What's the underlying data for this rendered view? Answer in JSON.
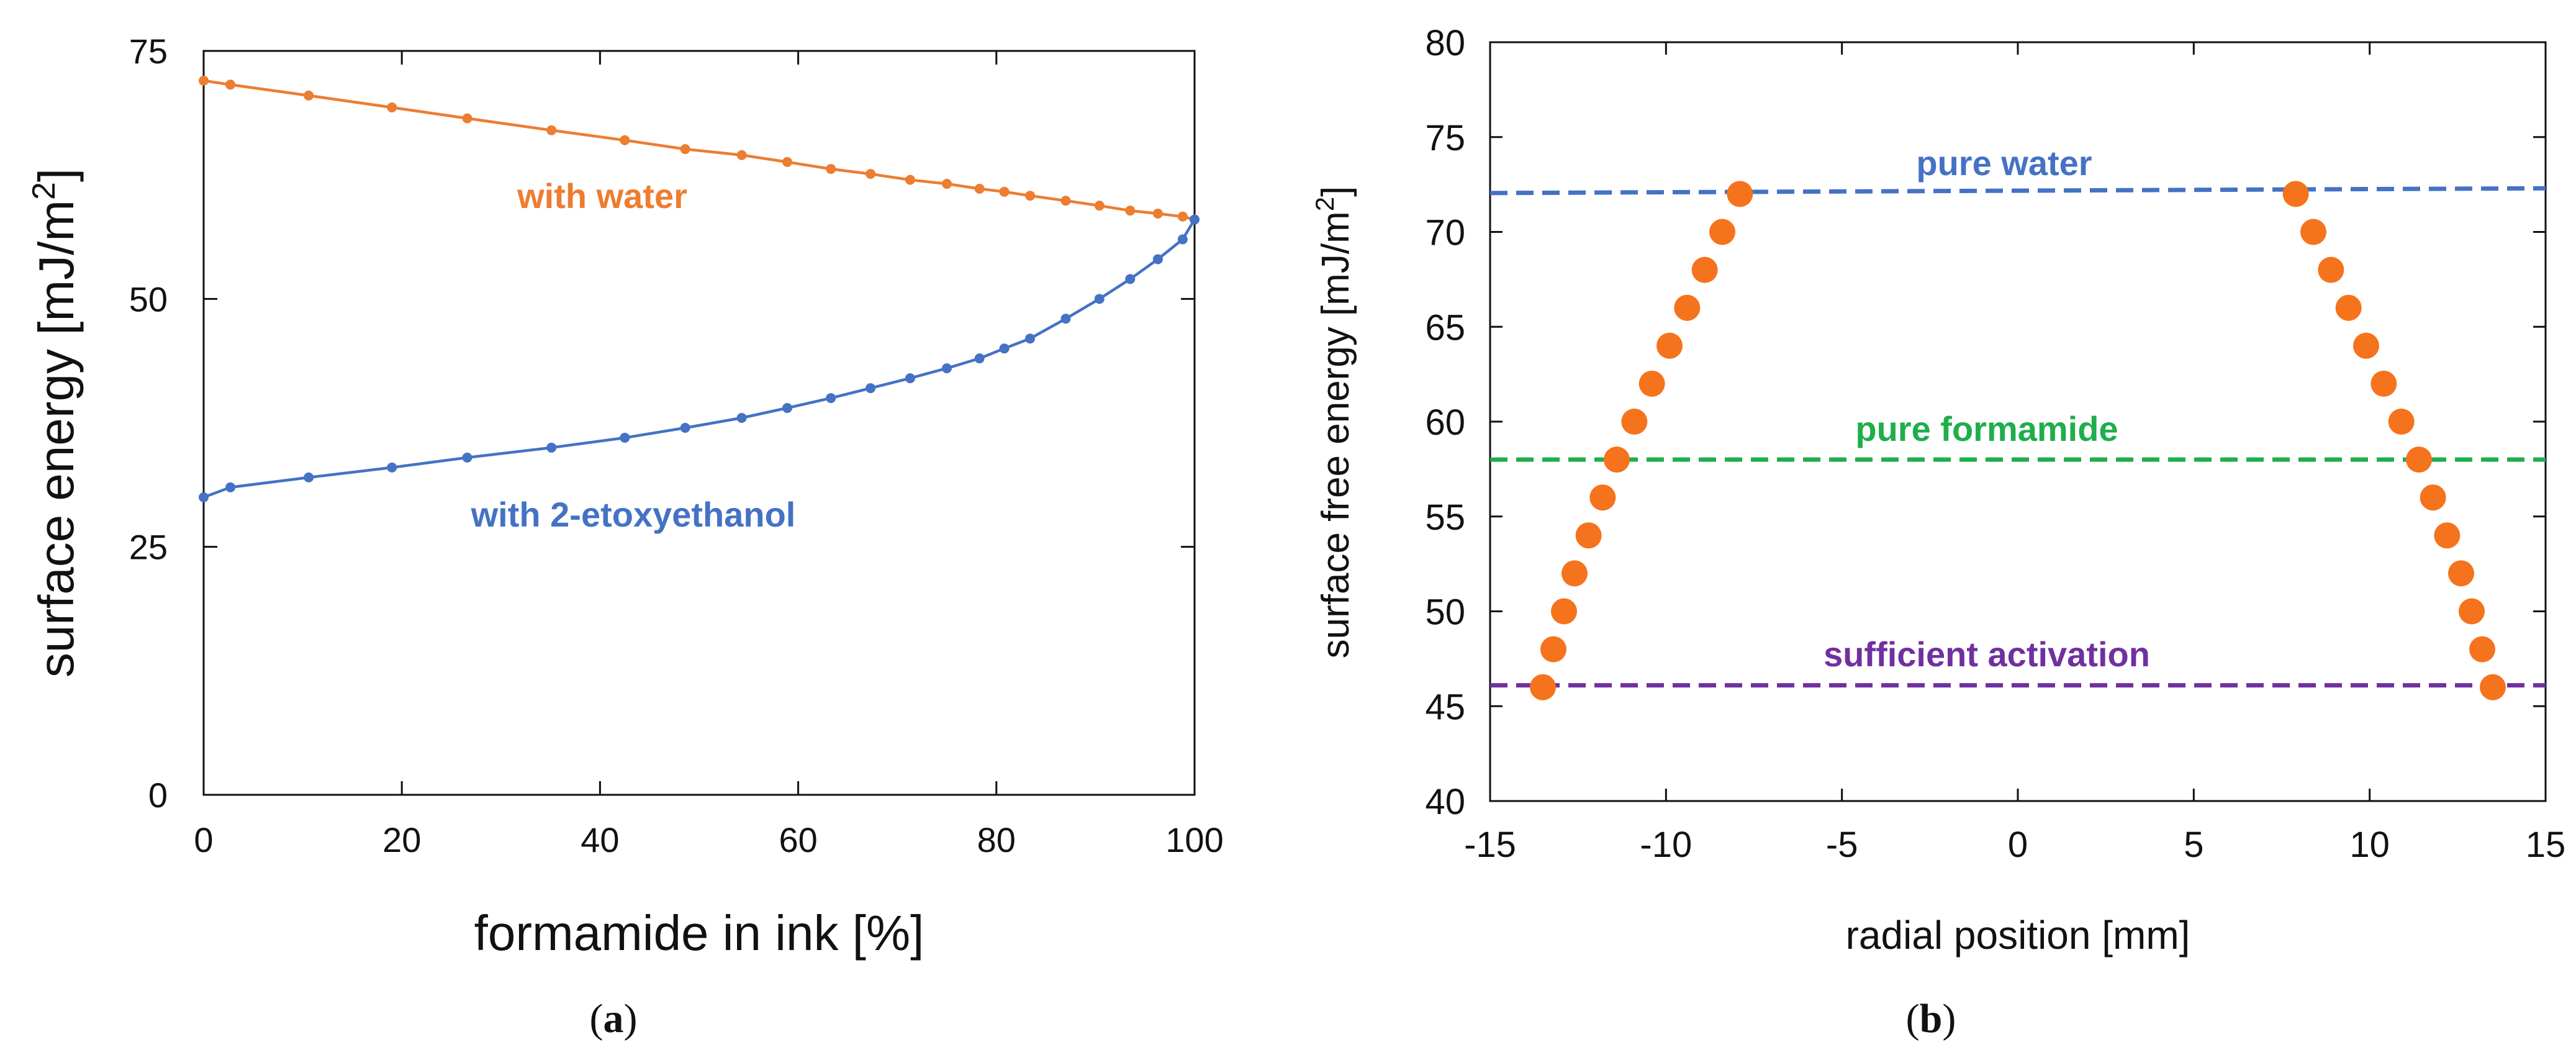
{
  "chart_data": [
    {
      "type": "line",
      "panel": "a",
      "caption": {
        "open": "(",
        "letter": "a",
        "close": ")"
      },
      "xlabel": "formamide in ink [%]",
      "ylabel_main": "surface energy [mJ/m",
      "ylabel_sup": "2",
      "ylabel_end": "]",
      "xlim": [
        0,
        100
      ],
      "ylim": [
        0,
        75
      ],
      "xticks": [
        0,
        20,
        40,
        60,
        80,
        100
      ],
      "yticks": [
        0,
        25,
        50,
        75
      ],
      "grid": false,
      "series": [
        {
          "name": "with water",
          "color": "#ED7D31",
          "label": "with water",
          "x": [
            0,
            2.7,
            10.6,
            19.0,
            26.6,
            35.1,
            42.5,
            48.6,
            54.3,
            58.9,
            63.3,
            67.3,
            71.3,
            75.0,
            78.3,
            80.8,
            83.4,
            87.0,
            90.4,
            93.5,
            96.3,
            98.8,
            100
          ],
          "y": [
            72.0,
            71.6,
            70.5,
            69.3,
            68.2,
            67.0,
            66.0,
            65.1,
            64.5,
            63.8,
            63.1,
            62.6,
            62.0,
            61.6,
            61.1,
            60.8,
            60.4,
            59.9,
            59.4,
            58.9,
            58.6,
            58.3,
            58.0
          ]
        },
        {
          "name": "with 2-etoxyethanol",
          "color": "#4472C4",
          "label": "with 2-etoxyethanol",
          "x": [
            0,
            2.7,
            10.6,
            19.0,
            26.6,
            35.1,
            42.5,
            48.6,
            54.3,
            58.9,
            63.3,
            67.3,
            71.3,
            75.0,
            78.3,
            80.8,
            83.4,
            87.0,
            90.4,
            93.5,
            96.3,
            98.8,
            100
          ],
          "y": [
            30.0,
            31.0,
            32.0,
            33.0,
            34.0,
            35.0,
            36.0,
            37.0,
            38.0,
            39.0,
            40.0,
            41.0,
            42.0,
            43.0,
            44.0,
            45.0,
            46.0,
            48.0,
            50.0,
            52.0,
            54.0,
            56.0,
            58.0
          ]
        }
      ]
    },
    {
      "type": "scatter",
      "panel": "b",
      "caption": {
        "open": "(",
        "letter": "b",
        "close": ")"
      },
      "xlabel": "radial position [mm]",
      "ylabel_main": "surface free energy [mJ/m",
      "ylabel_sup": "2",
      "ylabel_end": "]",
      "xlim": [
        -15,
        15
      ],
      "ylim": [
        40,
        80
      ],
      "xticks": [
        -15,
        -10,
        -5,
        0,
        5,
        10,
        15
      ],
      "yticks": [
        40,
        45,
        50,
        55,
        60,
        65,
        70,
        75,
        80
      ],
      "grid": false,
      "points": {
        "color": "#F5731D",
        "x": [
          -13.5,
          -13.2,
          -12.9,
          -12.6,
          -12.2,
          -11.8,
          -11.4,
          -10.9,
          -10.4,
          -9.9,
          -9.4,
          -8.9,
          -8.4,
          -7.9,
          7.9,
          8.4,
          8.9,
          9.4,
          9.9,
          10.4,
          10.9,
          11.4,
          11.8,
          12.2,
          12.6,
          12.9,
          13.2,
          13.5
        ],
        "y": [
          46,
          48,
          50,
          52,
          54,
          56,
          58,
          60,
          62,
          64,
          66,
          68,
          70,
          72,
          72,
          70,
          68,
          66,
          64,
          62,
          60,
          58,
          56,
          54,
          52,
          50,
          48,
          46
        ]
      },
      "reference_lines": [
        {
          "label": "pure water",
          "y_left": 72.05,
          "y_right": 72.3,
          "color": "#4472C4"
        },
        {
          "label": "pure formamide",
          "y_left": 58.0,
          "y_right": 58.0,
          "color": "#1FAE4B"
        },
        {
          "label": "sufficient activation",
          "y_left": 46.1,
          "y_right": 46.1,
          "color": "#7030A0"
        }
      ]
    }
  ]
}
